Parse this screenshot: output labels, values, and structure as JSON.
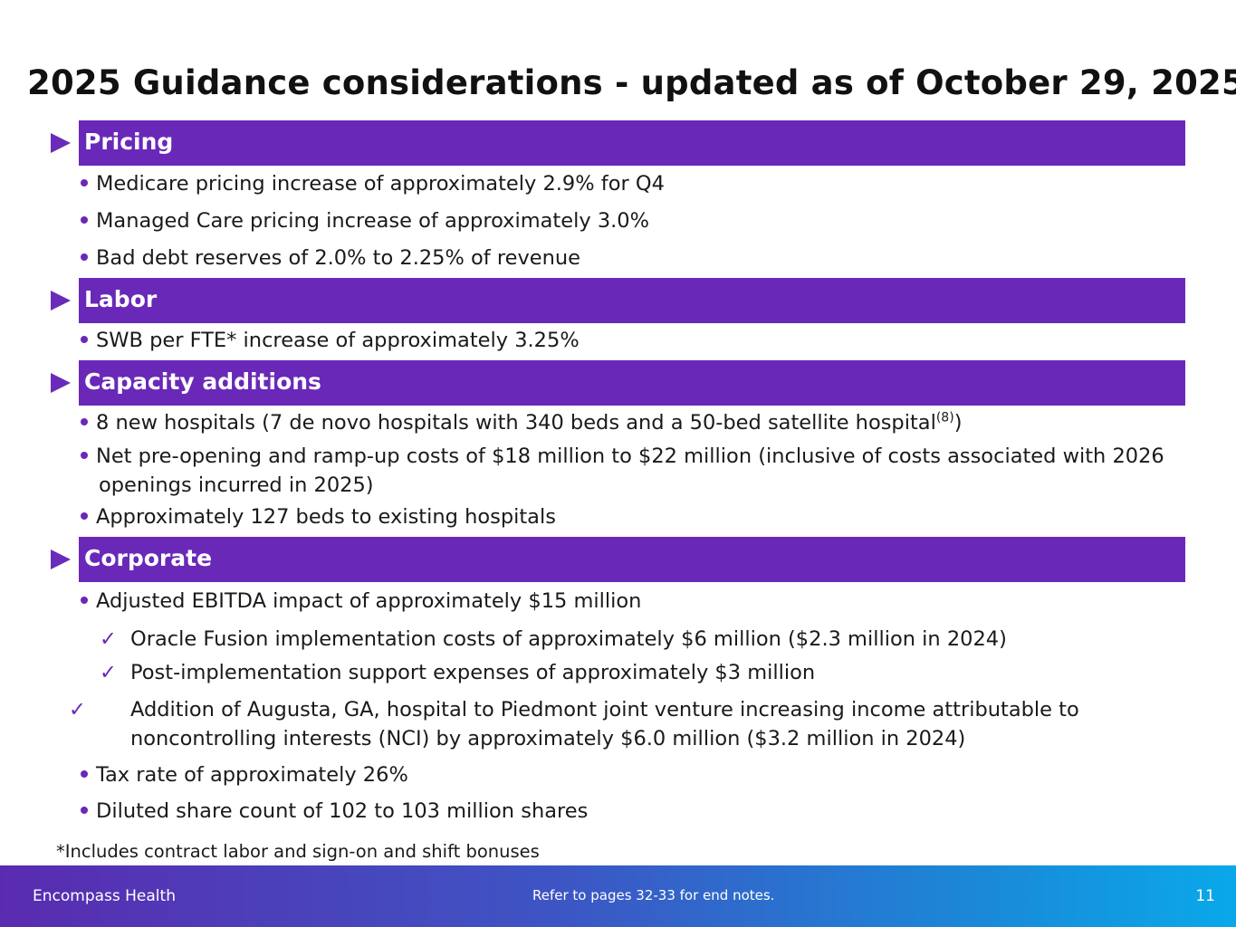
{
  "title": "2025 Guidance considerations - updated as of October 29, 2025",
  "sections": {
    "pricing": {
      "heading": "Pricing",
      "bullets": [
        "Medicare pricing increase of approximately 2.9% for Q4",
        "Managed Care pricing increase of approximately 3.0%",
        "Bad debt reserves of 2.0% to 2.25% of revenue"
      ]
    },
    "labor": {
      "heading": "Labor",
      "bullets": [
        "SWB per FTE* increase of approximately 3.25%"
      ]
    },
    "capacity": {
      "heading": "Capacity additions",
      "bullet1_text": "8 new hospitals (7 de novo hospitals with 340 beds and a 50-bed satellite hospital",
      "bullet1_sup": "(8)",
      "bullet1_close": ")",
      "bullets": [
        "Net pre-opening and ramp-up costs of $18 million to $22 million (inclusive of costs associated with 2026 openings incurred in 2025)",
        "Approximately 127 beds to existing hospitals"
      ]
    },
    "corporate": {
      "heading": "Corporate",
      "bullet_main": "Adjusted EBITDA impact of approximately $15 million",
      "checks": [
        "Oracle Fusion implementation costs of approximately $6 million ($2.3 million in 2024)",
        "Post-implementation support expenses of approximately $3 million",
        "Addition of Augusta, GA, hospital to Piedmont joint venture increasing income attributable to noncontrolling interests (NCI) by approximately $6.0 million ($3.2 million in 2024)"
      ],
      "bullets_after": [
        "Tax rate of approximately 26%",
        "Diluted share count of 102 to 103 million shares"
      ]
    }
  },
  "footnote": "*Includes contract labor and sign-on and shift bonuses",
  "footer": {
    "brand": "Encompass Health",
    "note": "Refer to pages 32-33 for end notes.",
    "page_number": "11"
  },
  "colors": {
    "section_bar": "#6a28b8",
    "footer_start": "#5a2bb0",
    "footer_end": "#0aa8ea"
  },
  "check_mark": "✓"
}
